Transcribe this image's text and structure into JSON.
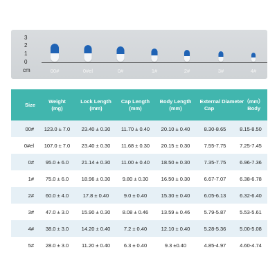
{
  "image_panel": {
    "ruler": {
      "ticks": [
        "3",
        "2",
        "1",
        "0"
      ],
      "unit": "cm"
    },
    "capsules": [
      {
        "label": "00#",
        "cap_color": "#1f63b5",
        "body_color": "#f4f6f8"
      },
      {
        "label": "0#el",
        "cap_color": "#1f63b5",
        "body_color": "#f4f6f8"
      },
      {
        "label": "0#",
        "cap_color": "#1f63b5",
        "body_color": "#f4f6f8"
      },
      {
        "label": "1#",
        "cap_color": "#1f63b5",
        "body_color": "#f4f6f8"
      },
      {
        "label": "2#",
        "cap_color": "#1f63b5",
        "body_color": "#f4f6f8"
      },
      {
        "label": "3#",
        "cap_color": "#1f63b5",
        "body_color": "#f4f6f8"
      },
      {
        "label": "4#",
        "cap_color": "#1f63b5",
        "body_color": "#f4f6f8"
      }
    ]
  },
  "table": {
    "header_color": "#41b6ae",
    "headers": {
      "size": "Size",
      "weight": "Weight",
      "weight_unit": "(mg)",
      "lock_length": "Lock Length",
      "lock_length_unit": "(mm)",
      "cap_length": "Cap Length",
      "cap_length_unit": "(mm)",
      "body_length": "Body Length",
      "body_length_unit": "(mm)",
      "external_diameter": "External Diameter（mm）",
      "cap": "Cap",
      "body": "Body"
    },
    "rows": [
      [
        "00#",
        "123.0 ± 7.0",
        "23.40 ± 0.30",
        "11.70 ± 0.40",
        "20.10 ± 0.40",
        "8.30-8.65",
        "8.15-8.50"
      ],
      [
        "0#el",
        "107.0 ± 7.0",
        "23.40 ± 0.30",
        "11.68 ± 0.30",
        "20.15 ± 0.30",
        "7.55-7.75",
        "7.25-7.45"
      ],
      [
        "0#",
        "95.0 ± 6.0",
        "21.14 ± 0.30",
        "11.00 ± 0.40",
        "18.50 ± 0.30",
        "7.35-7.75",
        "6.96-7.36"
      ],
      [
        "1#",
        "75.0 ± 6.0",
        "18.96 ± 0.30",
        "9.80 ± 0.30",
        "16.50 ± 0.30",
        "6.67-7.07",
        "6.38-6.78"
      ],
      [
        "2#",
        "60.0 ± 4.0",
        "17.8 ± 0.40",
        "9.0 ± 0.40",
        "15.30 ± 0.40",
        "6.05-6.13",
        "6.32-6.40"
      ],
      [
        "3#",
        "47.0 ± 3.0",
        "15.90 ± 0.30",
        "8.08 ± 0.46",
        "13.59 ± 0.46",
        "5.79-5.87",
        "5.53-5.61"
      ],
      [
        "4#",
        "38.0 ± 3.0",
        "14.20 ± 0.40",
        "7.2 ± 0.40",
        "12.10 ± 0.40",
        "5.28-5.36",
        "5.00-5.08"
      ],
      [
        "5#",
        "28.0 ± 3.0",
        "11.20 ± 0.40",
        "6.3 ± 0.40",
        "9.3 ±0.40",
        "4.85-4.97",
        "4.60-4.74"
      ]
    ]
  }
}
